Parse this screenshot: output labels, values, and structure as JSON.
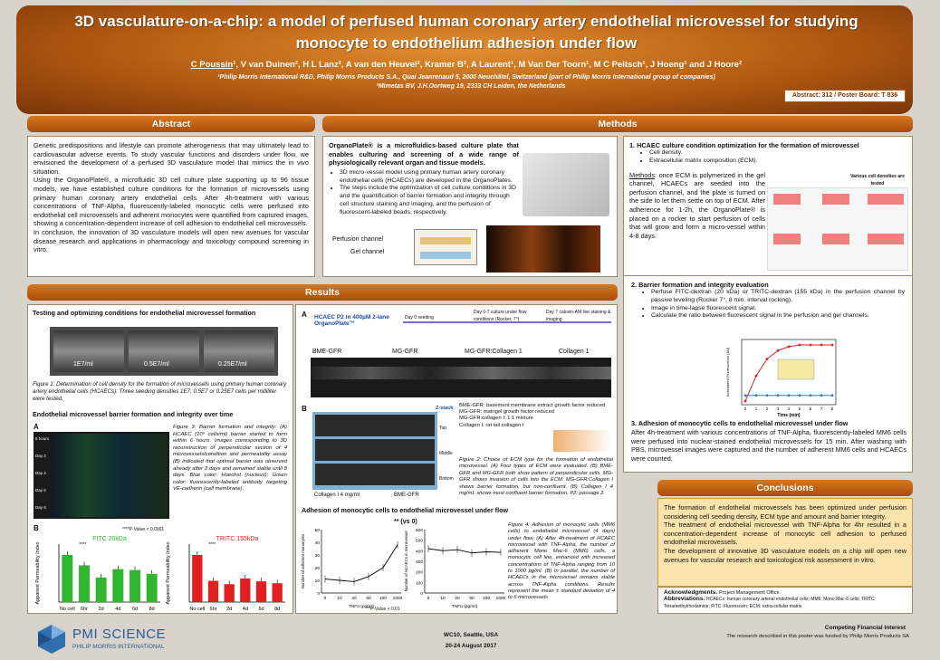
{
  "header": {
    "title": "3D vasculature-on-a-chip: a model of perfused human coronary artery endothelial microvessel for studying monocyte to endothelium adhesion under flow",
    "authors_lead": "C Poussin",
    "authors_rest": "¹, V van Duinen², H L Lanz², A van den Heuvel², Kramer B², A Laurent¹, M Van Der Toorn¹, M C Peitsch¹, J Hoeng¹ and J Hoore²",
    "affiliation1": "¹Philip Morris International R&D, Philip Morris Products S.A., Quai Jeanrenaud 5, 2000 Neuchâtel, Switzerland (part of Philip Morris International group of companies)",
    "affiliation2": "²Mimetas BV, J.H.Oortweg 19, 2333 CH Leiden, the Netherlands",
    "board": "Abstract: 312 / Poster Board: T 836"
  },
  "sections": {
    "abstract": "Abstract",
    "methods": "Methods",
    "results": "Results",
    "conclusions": "Conclusions"
  },
  "abstract": {
    "p1": "Genetic predispositions and lifestyle can promote atherogenesis that may ultimately lead to cardiovascular adverse events. To study vascular functions and disorders under flow, we envisioned the development of a perfused 3D vasculature model that mimics the in vivo situation.",
    "p2": "Using the OrganoPlate®, a microfluidic 3D cell culture plate supporting up to 96 tissue models, we have established culture conditions for the formation of microvessels using primary human coronary artery endothelial cells. After 4h-treatment with various concentrations of TNF-Alpha, fluorescently-labeled monocytic cells were perfused into endothelial cell microvessels and adherent monocytes were quantified from captured images, showing a concentration-dependent increase of cell adhesion to endothelial cell microvessels.",
    "p3": "In conclusion, the innovation of 3D vasculature models will open new avenues for vascular disease research and applications in pharmacology and toxicology compound screening in vitro."
  },
  "methods": {
    "intro": "OrganoPlate® is a microfluidics-based culture plate that enables culturing and screening of a wide range of physiologically relevant organ and tissue models.",
    "bullet1": "3D micro-vessel model using primary human artery coronary endothelial cells (HCAECs) are developed in the OrganoPlates.",
    "bullet2": "The steps include the optimization of cell culture conditions in 3D and the quantification of barrier formation and integrity through cell structure staining and imaging, and the perfusion of fluorescent-labeled beads, respectively.",
    "perfusion_label": "Perfusion channel",
    "gel_label": "Gel channel",
    "step1_title": "1.  HCAEC culture condition optimization for the formation of microvessel",
    "step1_b1": "Cell density.",
    "step1_b2": "Extracellular matrix composition (ECM).",
    "methods_label": "Methods",
    "methods_text": ": once ECM is polymerized in the gel channel, HCAECs are seeded into the perfusion channel, and the plate is turned on the side to let them settle on top of ECM. After adherence for 1-2h, the OrganoPlate® is placed on a rocker to start perfusion of cells that will grow and form a micro-vessel within 4-8 days.",
    "various_densities": "Various cell densities are tested",
    "step2_title": "2.  Barrier formation and integrity evaluation",
    "step2_b1": "Perfuse FITC-dextran (20 kDa) or TRITC-dextran (155 kDa) in the perfusion channel by passive leveling (Rocker 7°, 8 min. interval rocking).",
    "step2_b2": "Image in time-lapse fluorescent signal.",
    "step2_b3": "Calculate the ratio between fluorescent signal in the perfusion and gel channels.",
    "chart_ylabel": "Normalized Fluorescence (AU)",
    "chart_xlabel": "Time (min)",
    "step3_title": "3.  Adhesion of monocytic cells to endothelial microvessel under flow",
    "step3_text": "After 4h-treatment with various concentrations of TNF-Alpha, fluorescently-labeled MM6 cells were perfused into nuclear-stained endothelial microvessels for 15 min. After washing with PBS, microvessel images were captured and the number of adherent MM6 cells and HCAECs were counted."
  },
  "results": {
    "sub1": "Testing and optimizing conditions for endothelial microvessel formation",
    "density_labels": [
      "1E7/ml",
      "0.5E7/ml",
      "0.25E7/ml"
    ],
    "fig1_caption": "Figure 1: Determination of cell density for the formation of microvessels using primary human coronary artery endothelial cells (HCAECs). Three seeding densities 1E7, 0.5E7 or 0.25E7 cells per milliliter were tested.",
    "sub2": "Endothelial microvessel barrier formation and integrity over time",
    "panel_a": "A",
    "panel_b": "B",
    "day_labels": [
      "6 hours",
      "Day 2",
      "Day 4",
      "Day 6",
      "Day 8"
    ],
    "fig3_caption": "Figure 3: Barrier formation and integrity: (A) HCAEC (10⁶ cells/ml) barrier started to form within 6 hours. Images corresponding to 3D reconstruction of perpendicular section of 4 microvessels/condition and permeability assay (B) indicated that optimal barrier was observed already after 2 days and remained stable until 8 days. Blue color: Hoechst (nucleus); Green color: fluorescently-labeled antibody targeting VE-cadherin (cell membrane).",
    "pvalue_note": "****P-Value < 0.0001",
    "fitc_title": "FITC 20kDa",
    "tritc_title": "TRITC 155kDa",
    "perm_ylabel": "Apparent Permeability Index",
    "sig": "****",
    "timeline_title": "HCAEC P2 in 400µM 2-lane OrganoPlate™",
    "timeline_steps": [
      "Day 0 seeding",
      "Day 0-7 culture under flow conditions (Rocker, 7°)",
      "Day 7 calcein-AM live staining & imaging"
    ],
    "ecm_labels": [
      "BME-GFR",
      "MG-GFR",
      "MG-GFR:Collagen 1",
      "Collagen 1"
    ],
    "zstack": "Z-stack",
    "zlabels": [
      "Top",
      "Middle",
      "Bottom"
    ],
    "col_labels": [
      "Collagen I 4 mg/ml",
      "BME-GFR"
    ],
    "legend_lines": [
      "BME-GFR: basement membrane extract growth factor reduced",
      "MG-GFR: matrigel growth factor reduced",
      "MG-GFR:collagen I: 1:1 mixture",
      "Collagen I: rat tail collagen I"
    ],
    "fig2_caption": "Figure 2: Choice of ECM type for the formation of endothelial microvessel. (A) Four types of ECM were evaluated. (B) BME-GFR and MG-GFR both show pattern of perpendicular cells. MG-GFR shows invasion of cells into the ECM. MG-GFR:Collagen I shows barrier formation, but non-confluent. (B) Collagen I 4 mg/mL shows most confluent barrier formation. P2: passage 2.",
    "sub3": "Adhesion of monocytic cells to endothelial microvessel under flow",
    "adh_sig": "** (vs 0)",
    "adh_pnote": "**P-Value < 0.01",
    "adh_ylabel_a": "Number of adherent monocytes",
    "adh_ylabel_b": "Number of HCAECs in microvessel",
    "adh_xlabel": "TNFα (pg/ml)",
    "fig4_caption": "Figure 4: Adhesion of monocytic cells (MM6 cells) to endothelial microvessel (4 days) under flow. (A) After 4h-treatment of HCAEC microvessel with TNF-Alpha, the number of adherent Mono Mac-6 (MM6) cells, a monocytic cell line, enhanced with increased concentrations of TNF-Alpha ranging from 10 to 1000 pg/ml. (B) In parallel, the number of HCAECs in the microvessel remains stable across TNF-Alpha conditions. Results represent the mean ± standard deviation of 4 to 6 microvessels"
  },
  "conclusions": {
    "p1": "The formation of endothelial microvessels has been optimized under perfusion considering cell seeding density, ECM type and amount and barrier integrity.",
    "p2": "The treatment of endothelial microvessel with TNF-Alpha for 4hr resulted in a concentration-dependent increase of monocytic cell adhesion to perfused endothelial microvessels.",
    "p3": "The development of innovative 3D vasculature models on a chip will open new avenues for vascular research and toxicological risk assessment in vitro.",
    "ack_label": "Acknowledgments.",
    "ack_text": "Project Management Office.",
    "abbr_label": "Abbreviations.",
    "abbr_text": "HCAECs: human coronary arterial endothelial cells; MM6: Mono Mac-6 cells; TRITC: Tetramethylrhodamine; FITC: Fluorescein; ECM: extra-cellular matrix"
  },
  "footer": {
    "brand": "PMI SCIENCE",
    "brand_sub": "PHILIP MORRIS INTERNATIONAL",
    "conf": "WC10, Seattle, USA",
    "dates": "20-24 August 2017",
    "cfi_title": "Competing Financial Interest",
    "cfi_text": "The research described in this poster was funded by Philip Morris Products SA"
  },
  "chart_data": [
    {
      "type": "bar",
      "title": "FITC 20kDa",
      "ylabel": "Apparent Permeability Index",
      "categories": [
        "No cell",
        "6hr",
        "2d",
        "4d",
        "6d",
        "8d"
      ],
      "values": [
        1.0,
        0.78,
        0.52,
        0.7,
        0.68,
        0.6
      ],
      "color": "#2fb52f"
    },
    {
      "type": "bar",
      "title": "TRITC 155kDa",
      "ylabel": "Apparent Permeability Index",
      "categories": [
        "No cell",
        "6hr",
        "2d",
        "4d",
        "6d",
        "8d"
      ],
      "values": [
        1.0,
        0.45,
        0.38,
        0.5,
        0.44,
        0.4
      ],
      "color": "#e02020"
    },
    {
      "type": "line",
      "ylabel": "Number of adherent monocytes",
      "xlabel": "TNFα (pg/ml)",
      "categories": [
        "0",
        "10",
        "20",
        "50",
        "100",
        "1000"
      ],
      "values": [
        11,
        10,
        9,
        13,
        20,
        38
      ],
      "ylim": [
        0,
        50
      ]
    },
    {
      "type": "line",
      "ylabel": "Number of HCAECs in microvessel",
      "xlabel": "TNFα (pg/ml)",
      "categories": [
        "0",
        "10",
        "20",
        "50",
        "100",
        "1000"
      ],
      "values": [
        420,
        400,
        410,
        380,
        390,
        385
      ],
      "ylim": [
        0,
        600
      ]
    },
    {
      "type": "line",
      "ylabel": "Normalized Fluorescence (AU)",
      "xlabel": "Time (min)",
      "series": [
        {
          "values": [
            0,
            0.45,
            0.75,
            0.9,
            0.97,
            1.0,
            1.0,
            1.0,
            1.0
          ]
        },
        {
          "values": [
            0.1,
            0.1,
            0.1,
            0.1,
            0.1,
            0.1,
            0.1,
            0.1,
            0.1
          ]
        }
      ],
      "categories": [
        "0",
        "1",
        "2",
        "3",
        "4",
        "5",
        "6",
        "7",
        "8"
      ]
    }
  ]
}
